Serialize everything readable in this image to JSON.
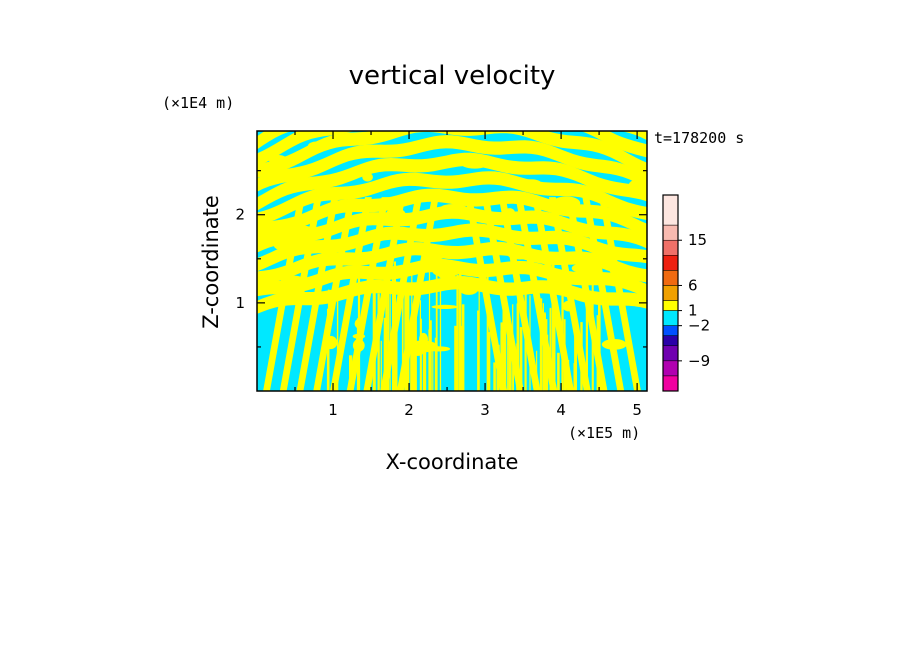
{
  "chart_data": {
    "type": "heatmap",
    "title": "vertical velocity",
    "xlabel": "X-coordinate",
    "ylabel": "Z-coordinate",
    "x_unit": "(×1E5 m)",
    "y_unit": "(×1E4 m)",
    "time_label": "t=178200 s",
    "x_ticks": [
      "1",
      "2",
      "3",
      "4",
      "5"
    ],
    "y_ticks": [
      "1",
      "2"
    ],
    "xlim": [
      0,
      5.13
    ],
    "ylim": [
      0,
      2.95
    ],
    "field_colors": {
      "positive": "#ffff00",
      "negative": "#00e8ff"
    },
    "colorbar": {
      "labels": [
        {
          "text": "15",
          "value": 15
        },
        {
          "text": "6",
          "value": 6
        },
        {
          "text": "1",
          "value": 1
        },
        {
          "text": "−2",
          "value": -2
        },
        {
          "text": "−9",
          "value": -9
        }
      ],
      "levels": [
        {
          "min": 18,
          "max": 24,
          "color": "#fde6e0"
        },
        {
          "min": 15,
          "max": 18,
          "color": "#f8bab0"
        },
        {
          "min": 12,
          "max": 15,
          "color": "#f07068"
        },
        {
          "min": 9,
          "max": 12,
          "color": "#ee2010"
        },
        {
          "min": 6,
          "max": 9,
          "color": "#f06a10"
        },
        {
          "min": 3,
          "max": 6,
          "color": "#f0a000"
        },
        {
          "min": 1,
          "max": 3,
          "color": "#ffff00"
        },
        {
          "min": -2,
          "max": 1,
          "color": "#00e8ff"
        },
        {
          "min": -4,
          "max": -2,
          "color": "#0050ff"
        },
        {
          "min": -6,
          "max": -4,
          "color": "#2a00a8"
        },
        {
          "min": -9,
          "max": -6,
          "color": "#7000b0"
        },
        {
          "min": -12,
          "max": -9,
          "color": "#b000b0"
        },
        {
          "min": -15,
          "max": -12,
          "color": "#f000a0"
        }
      ]
    }
  }
}
